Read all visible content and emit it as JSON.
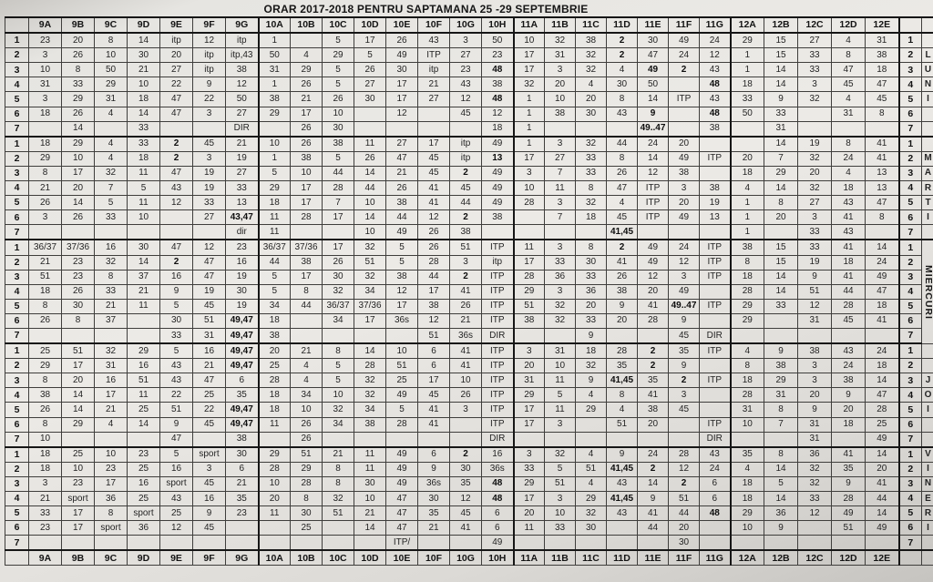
{
  "title": "ORAR 2017-2018  PENTRU SAPTAMANA 25 -29 SEPTEMBRIE",
  "columns": [
    "9A",
    "9B",
    "9C",
    "9D",
    "9E",
    "9F",
    "9G",
    "10A",
    "10B",
    "10C",
    "10D",
    "10E",
    "10F",
    "10G",
    "10H",
    "11A",
    "11B",
    "11C",
    "11D",
    "11E",
    "11F",
    "11G",
    "12A",
    "12B",
    "12C",
    "12D",
    "12E"
  ],
  "period_numbers": [
    "1",
    "2",
    "3",
    "4",
    "5",
    "6",
    "7"
  ],
  "bold_marker": "*",
  "days": [
    {
      "name": "LUNI",
      "letters": [
        "",
        "L",
        "U",
        "N",
        "I",
        "",
        ""
      ],
      "rows": [
        [
          "23",
          "20",
          "8",
          "14",
          "itp",
          "12",
          "itp",
          "1",
          "",
          "5",
          "17",
          "26",
          "43",
          "3",
          "50",
          "10",
          "32",
          "38",
          "*2",
          "30",
          "49",
          "24",
          "29",
          "15",
          "27",
          "4",
          "31"
        ],
        [
          "3",
          "26",
          "10",
          "30",
          "20",
          "itp",
          "itp,43",
          "50",
          "4",
          "29",
          "5",
          "49",
          "ITP",
          "27",
          "23",
          "17",
          "31",
          "32",
          "*2",
          "47",
          "24",
          "12",
          "1",
          "15",
          "33",
          "8",
          "38"
        ],
        [
          "10",
          "8",
          "50",
          "21",
          "27",
          "itp",
          "38",
          "31",
          "29",
          "5",
          "26",
          "30",
          "itp",
          "23",
          "*48",
          "17",
          "3",
          "32",
          "4",
          "*49",
          "*2",
          "43",
          "1",
          "14",
          "33",
          "47",
          "18"
        ],
        [
          "31",
          "33",
          "29",
          "10",
          "22",
          "9",
          "12",
          "1",
          "26",
          "5",
          "27",
          "17",
          "21",
          "43",
          "38",
          "32",
          "20",
          "4",
          "30",
          "50",
          "",
          "*48",
          "18",
          "14",
          "3",
          "45",
          "47"
        ],
        [
          "3",
          "29",
          "31",
          "18",
          "47",
          "22",
          "50",
          "38",
          "21",
          "26",
          "30",
          "17",
          "27",
          "12",
          "*48",
          "1",
          "10",
          "20",
          "8",
          "14",
          "ITP",
          "43",
          "33",
          "9",
          "32",
          "4",
          "45"
        ],
        [
          "18",
          "26",
          "4",
          "14",
          "47",
          "3",
          "27",
          "29",
          "17",
          "10",
          "",
          "12",
          "",
          "45",
          "12",
          "1",
          "38",
          "30",
          "43",
          "*9",
          "",
          "*48",
          "50",
          "33",
          "",
          "31",
          "8"
        ],
        [
          "",
          "14",
          "",
          "33",
          "",
          "",
          "DIR",
          "",
          "26",
          "30",
          "",
          "",
          "",
          "",
          "18",
          "1",
          "",
          "",
          "",
          "*49..47",
          "",
          "38",
          "",
          "31",
          "",
          "",
          ""
        ]
      ]
    },
    {
      "name": "MARTI",
      "letters": [
        "",
        "M",
        "A",
        "R",
        "T",
        "I",
        ""
      ],
      "rows": [
        [
          "18",
          "29",
          "4",
          "33",
          "*2",
          "45",
          "21",
          "10",
          "26",
          "38",
          "11",
          "27",
          "17",
          "itp",
          "49",
          "1",
          "3",
          "32",
          "44",
          "24",
          "20",
          "",
          "",
          "14",
          "19",
          "8",
          "41"
        ],
        [
          "29",
          "10",
          "4",
          "18",
          "*2",
          "3",
          "19",
          "1",
          "38",
          "5",
          "26",
          "47",
          "45",
          "itp",
          "*13",
          "17",
          "27",
          "33",
          "8",
          "14",
          "49",
          "ITP",
          "20",
          "7",
          "32",
          "24",
          "41"
        ],
        [
          "8",
          "17",
          "32",
          "11",
          "47",
          "19",
          "27",
          "5",
          "10",
          "44",
          "14",
          "21",
          "45",
          "*2",
          "49",
          "3",
          "7",
          "33",
          "26",
          "12",
          "38",
          "",
          "18",
          "29",
          "20",
          "4",
          "13"
        ],
        [
          "21",
          "20",
          "7",
          "5",
          "43",
          "19",
          "33",
          "29",
          "17",
          "28",
          "44",
          "26",
          "41",
          "45",
          "49",
          "10",
          "11",
          "8",
          "47",
          "ITP",
          "3",
          "38",
          "4",
          "14",
          "32",
          "18",
          "13"
        ],
        [
          "26",
          "14",
          "5",
          "11",
          "12",
          "33",
          "13",
          "18",
          "17",
          "7",
          "10",
          "38",
          "41",
          "44",
          "49",
          "28",
          "3",
          "32",
          "4",
          "ITP",
          "20",
          "19",
          "1",
          "8",
          "27",
          "43",
          "47"
        ],
        [
          "3",
          "26",
          "33",
          "10",
          "",
          "27",
          "*43,47",
          "11",
          "28",
          "17",
          "14",
          "44",
          "12",
          "*2",
          "38",
          "",
          "7",
          "18",
          "45",
          "ITP",
          "49",
          "13",
          "1",
          "20",
          "3",
          "41",
          "8"
        ],
        [
          "",
          "",
          "",
          "",
          "",
          "",
          "dir",
          "11",
          "",
          "",
          "10",
          "49",
          "26",
          "38",
          "",
          "",
          "",
          "",
          "*41,45",
          "",
          "",
          "",
          "1",
          "",
          "33",
          "43",
          ""
        ]
      ]
    },
    {
      "name": "MIERCURI",
      "vertical_label": "MIERCURI",
      "letters": [
        "",
        "",
        "",
        "",
        "",
        "",
        ""
      ],
      "rows": [
        [
          "36/37",
          "37/36",
          "16",
          "30",
          "47",
          "12",
          "23",
          "36/37",
          "37/36",
          "17",
          "32",
          "5",
          "26",
          "51",
          "ITP",
          "11",
          "3",
          "8",
          "*2",
          "49",
          "24",
          "ITP",
          "38",
          "15",
          "33",
          "41",
          "14"
        ],
        [
          "21",
          "23",
          "32",
          "14",
          "*2",
          "47",
          "16",
          "44",
          "38",
          "26",
          "51",
          "5",
          "28",
          "3",
          "itp",
          "17",
          "33",
          "30",
          "41",
          "49",
          "12",
          "ITP",
          "8",
          "15",
          "19",
          "18",
          "24"
        ],
        [
          "51",
          "23",
          "8",
          "37",
          "16",
          "47",
          "19",
          "5",
          "17",
          "30",
          "32",
          "38",
          "44",
          "*2",
          "ITP",
          "28",
          "36",
          "33",
          "26",
          "12",
          "3",
          "ITP",
          "18",
          "14",
          "9",
          "41",
          "49"
        ],
        [
          "18",
          "26",
          "33",
          "21",
          "9",
          "19",
          "30",
          "5",
          "8",
          "32",
          "34",
          "12",
          "17",
          "41",
          "ITP",
          "29",
          "3",
          "36",
          "38",
          "20",
          "49",
          "",
          "28",
          "14",
          "51",
          "44",
          "47"
        ],
        [
          "8",
          "30",
          "21",
          "11",
          "5",
          "45",
          "19",
          "34",
          "44",
          "36/37",
          "37/36",
          "17",
          "38",
          "26",
          "ITP",
          "51",
          "32",
          "20",
          "9",
          "41",
          "*49..47",
          "ITP",
          "29",
          "33",
          "12",
          "28",
          "18"
        ],
        [
          "26",
          "8",
          "37",
          "",
          "30",
          "51",
          "*49,47",
          "18",
          "",
          "34",
          "17",
          "36s",
          "12",
          "21",
          "ITP",
          "38",
          "32",
          "33",
          "20",
          "28",
          "9",
          "",
          "29",
          "",
          "31",
          "45",
          "41"
        ],
        [
          "",
          "",
          "",
          "",
          "33",
          "31",
          "*49,47",
          "38",
          "",
          "",
          "",
          "",
          "51",
          "36s",
          "DIR",
          "",
          "",
          "9",
          "",
          "",
          "45",
          "DIR",
          "",
          "",
          "",
          "",
          ""
        ]
      ]
    },
    {
      "name": "JOI",
      "letters": [
        "",
        "",
        "J",
        "O",
        "I",
        "",
        ""
      ],
      "rows": [
        [
          "25",
          "51",
          "32",
          "29",
          "5",
          "16",
          "*49,47",
          "20",
          "21",
          "8",
          "14",
          "10",
          "6",
          "41",
          "ITP",
          "3",
          "31",
          "18",
          "28",
          "*2",
          "35",
          "ITP",
          "4",
          "9",
          "38",
          "43",
          "24"
        ],
        [
          "29",
          "17",
          "31",
          "16",
          "43",
          "21",
          "*49,47",
          "25",
          "4",
          "5",
          "28",
          "51",
          "6",
          "41",
          "ITP",
          "20",
          "10",
          "32",
          "35",
          "*2",
          "9",
          "",
          "8",
          "38",
          "3",
          "24",
          "18"
        ],
        [
          "8",
          "20",
          "16",
          "51",
          "43",
          "47",
          "6",
          "28",
          "4",
          "5",
          "32",
          "25",
          "17",
          "10",
          "ITP",
          "31",
          "11",
          "9",
          "*41,45",
          "35",
          "*2",
          "ITP",
          "18",
          "29",
          "3",
          "38",
          "14"
        ],
        [
          "38",
          "14",
          "17",
          "11",
          "22",
          "25",
          "35",
          "18",
          "34",
          "10",
          "32",
          "49",
          "45",
          "26",
          "ITP",
          "29",
          "5",
          "4",
          "8",
          "41",
          "3",
          "",
          "28",
          "31",
          "20",
          "9",
          "47"
        ],
        [
          "26",
          "14",
          "21",
          "25",
          "51",
          "22",
          "*49,47",
          "18",
          "10",
          "32",
          "34",
          "5",
          "41",
          "3",
          "ITP",
          "17",
          "11",
          "29",
          "4",
          "38",
          "45",
          "",
          "31",
          "8",
          "9",
          "20",
          "28"
        ],
        [
          "8",
          "29",
          "4",
          "14",
          "9",
          "45",
          "*49,47",
          "11",
          "26",
          "34",
          "38",
          "28",
          "41",
          "",
          "ITP",
          "17",
          "3",
          "",
          "51",
          "20",
          "",
          "ITP",
          "10",
          "7",
          "31",
          "18",
          "25"
        ],
        [
          "10",
          "",
          "",
          "",
          "47",
          "",
          "38",
          "",
          "26",
          "",
          "",
          "",
          "",
          "",
          "DIR",
          "",
          "",
          "",
          "",
          "",
          "",
          "DIR",
          "",
          "",
          "31",
          "",
          "49"
        ]
      ]
    },
    {
      "name": "VINERI",
      "letters": [
        "V",
        "I",
        "N",
        "E",
        "R",
        "I",
        ""
      ],
      "rows": [
        [
          "18",
          "25",
          "10",
          "23",
          "5",
          "sport",
          "30",
          "29",
          "51",
          "21",
          "11",
          "49",
          "6",
          "*2",
          "16",
          "3",
          "32",
          "4",
          "9",
          "24",
          "28",
          "43",
          "35",
          "8",
          "36",
          "41",
          "14"
        ],
        [
          "18",
          "10",
          "23",
          "25",
          "16",
          "3",
          "6",
          "28",
          "29",
          "8",
          "11",
          "49",
          "9",
          "30",
          "36s",
          "33",
          "5",
          "51",
          "*41,45",
          "*2",
          "12",
          "24",
          "4",
          "14",
          "32",
          "35",
          "20"
        ],
        [
          "3",
          "23",
          "17",
          "16",
          "sport",
          "45",
          "21",
          "10",
          "28",
          "8",
          "30",
          "49",
          "36s",
          "35",
          "*48",
          "29",
          "51",
          "4",
          "43",
          "14",
          "*2",
          "6",
          "18",
          "5",
          "32",
          "9",
          "41"
        ],
        [
          "21",
          "sport",
          "36",
          "25",
          "43",
          "16",
          "35",
          "20",
          "8",
          "32",
          "10",
          "47",
          "30",
          "12",
          "*48",
          "17",
          "3",
          "29",
          "*41,45",
          "9",
          "51",
          "6",
          "18",
          "14",
          "33",
          "28",
          "44"
        ],
        [
          "33",
          "17",
          "8",
          "sport",
          "25",
          "9",
          "23",
          "11",
          "30",
          "51",
          "21",
          "47",
          "35",
          "45",
          "6",
          "20",
          "10",
          "32",
          "43",
          "41",
          "44",
          "*48",
          "29",
          "36",
          "12",
          "49",
          "14"
        ],
        [
          "23",
          "17",
          "sport",
          "36",
          "12",
          "45",
          "",
          "",
          "25",
          "",
          "14",
          "47",
          "21",
          "41",
          "6",
          "11",
          "33",
          "30",
          "",
          "44",
          "20",
          "",
          "10",
          "9",
          "",
          "51",
          "49"
        ],
        [
          "",
          "",
          "",
          "",
          "",
          "",
          "",
          "",
          "",
          "",
          "",
          "ITP/",
          "",
          "",
          "49",
          "",
          "",
          "",
          "",
          "",
          "30",
          "",
          "",
          "",
          "",
          "",
          ""
        ]
      ]
    }
  ]
}
